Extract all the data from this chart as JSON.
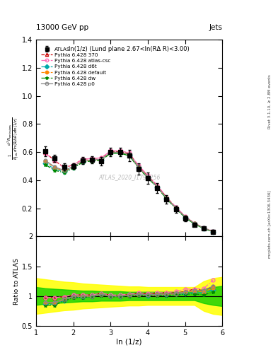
{
  "title_left": "13000 GeV pp",
  "title_right": "Jets",
  "subplot_title": "ln(1/z) (Lund plane 2.67<ln(RΔ R)<3.00)",
  "watermark": "ATLAS_2020_I1790256",
  "ylabel_main": "$\\frac{1}{N_{\\mathrm{jets}}}\\frac{d^2 N_{\\mathrm{emissions}}}{d\\ln(R/\\Delta R)\\,d\\ln(1/z)}$",
  "ylabel_ratio": "Ratio to ATLAS",
  "xlabel": "ln (1/z)",
  "right_label_top": "Rivet 3.1.10, ≥ 2.8M events",
  "right_label_bottom": "mcplots.cern.ch [arXiv:1306.3436]",
  "ylim_main": [
    0.0,
    1.4
  ],
  "ylim_ratio": [
    0.5,
    2.0
  ],
  "xlim": [
    1.0,
    6.0
  ],
  "xticks": [
    1,
    2,
    3,
    4,
    5,
    6
  ],
  "yticks_main": [
    0.2,
    0.4,
    0.6,
    0.8,
    1.0,
    1.2,
    1.4
  ],
  "yticks_ratio": [
    0.5,
    1.0,
    1.5,
    2.0
  ],
  "atlas_x": [
    1.25,
    1.5,
    1.75,
    2.0,
    2.25,
    2.5,
    2.75,
    3.0,
    3.25,
    3.5,
    3.75,
    4.0,
    4.25,
    4.5,
    4.75,
    5.0,
    5.25,
    5.5,
    5.75
  ],
  "atlas_y": [
    0.605,
    0.555,
    0.495,
    0.5,
    0.54,
    0.545,
    0.535,
    0.6,
    0.6,
    0.575,
    0.48,
    0.415,
    0.345,
    0.265,
    0.195,
    0.13,
    0.085,
    0.055,
    0.03
  ],
  "atlas_err_y": [
    0.035,
    0.025,
    0.025,
    0.02,
    0.025,
    0.025,
    0.03,
    0.03,
    0.03,
    0.04,
    0.04,
    0.04,
    0.035,
    0.03,
    0.025,
    0.02,
    0.015,
    0.01,
    0.008
  ],
  "atlas_color": "#000000",
  "atlas_marker": "s",
  "atlas_label": "ATLAS",
  "yellow_band_x": [
    1.0,
    1.25,
    1.5,
    1.75,
    2.0,
    2.25,
    2.5,
    2.75,
    3.0,
    3.25,
    3.5,
    3.75,
    4.0,
    4.25,
    4.5,
    4.75,
    5.0,
    5.25,
    5.5,
    5.75,
    6.0
  ],
  "yellow_band_lo": [
    0.7,
    0.72,
    0.74,
    0.76,
    0.77,
    0.79,
    0.8,
    0.81,
    0.82,
    0.83,
    0.84,
    0.84,
    0.85,
    0.85,
    0.85,
    0.85,
    0.85,
    0.85,
    0.75,
    0.7,
    0.68
  ],
  "yellow_band_hi": [
    1.3,
    1.28,
    1.26,
    1.24,
    1.23,
    1.21,
    1.2,
    1.19,
    1.18,
    1.17,
    1.16,
    1.16,
    1.15,
    1.15,
    1.15,
    1.15,
    1.15,
    1.15,
    1.25,
    1.3,
    1.32
  ],
  "green_band_x": [
    1.0,
    1.25,
    1.5,
    1.75,
    2.0,
    2.25,
    2.5,
    2.75,
    3.0,
    3.25,
    3.5,
    3.75,
    4.0,
    4.25,
    4.5,
    4.75,
    5.0,
    5.25,
    5.5,
    5.75,
    6.0
  ],
  "green_band_lo": [
    0.85,
    0.87,
    0.88,
    0.89,
    0.9,
    0.91,
    0.91,
    0.92,
    0.92,
    0.92,
    0.93,
    0.93,
    0.93,
    0.93,
    0.93,
    0.93,
    0.93,
    0.93,
    0.88,
    0.85,
    0.83
  ],
  "green_band_hi": [
    1.15,
    1.13,
    1.12,
    1.11,
    1.1,
    1.09,
    1.09,
    1.08,
    1.08,
    1.08,
    1.07,
    1.07,
    1.07,
    1.07,
    1.07,
    1.07,
    1.07,
    1.07,
    1.12,
    1.15,
    1.17
  ],
  "lines": [
    {
      "label": "Pythia 6.428 370",
      "color": "#cc0000",
      "linestyle": "--",
      "marker": "^",
      "marker_face": "none",
      "x": [
        1.25,
        1.5,
        1.75,
        2.0,
        2.25,
        2.5,
        2.75,
        3.0,
        3.25,
        3.5,
        3.75,
        4.0,
        4.25,
        4.5,
        4.75,
        5.0,
        5.25,
        5.5,
        5.75
      ],
      "y": [
        0.595,
        0.54,
        0.49,
        0.51,
        0.55,
        0.555,
        0.56,
        0.605,
        0.605,
        0.59,
        0.5,
        0.43,
        0.36,
        0.28,
        0.205,
        0.14,
        0.095,
        0.06,
        0.035
      ],
      "ratio": [
        0.985,
        0.973,
        0.99,
        1.02,
        1.019,
        1.018,
        1.047,
        1.008,
        1.008,
        1.026,
        1.042,
        1.036,
        1.043,
        1.057,
        1.051,
        1.077,
        1.118,
        1.091,
        1.167
      ]
    },
    {
      "label": "Pythia 6.428 atlas-csc",
      "color": "#ff69b4",
      "linestyle": "-.",
      "marker": "o",
      "marker_face": "none",
      "x": [
        1.25,
        1.5,
        1.75,
        2.0,
        2.25,
        2.5,
        2.75,
        3.0,
        3.25,
        3.5,
        3.75,
        4.0,
        4.25,
        4.5,
        4.75,
        5.0,
        5.25,
        5.5,
        5.75
      ],
      "y": [
        0.59,
        0.54,
        0.49,
        0.51,
        0.55,
        0.555,
        0.56,
        0.61,
        0.61,
        0.595,
        0.505,
        0.435,
        0.365,
        0.28,
        0.21,
        0.145,
        0.095,
        0.062,
        0.038
      ],
      "ratio": [
        0.975,
        0.973,
        0.99,
        1.02,
        1.019,
        1.018,
        1.047,
        1.017,
        1.017,
        1.035,
        1.052,
        1.048,
        1.058,
        1.057,
        1.077,
        1.115,
        1.118,
        1.127,
        1.267
      ]
    },
    {
      "label": "Pythia 6.428 d6t",
      "color": "#00aaaa",
      "linestyle": "--",
      "marker": "D",
      "marker_face": "#00aaaa",
      "x": [
        1.25,
        1.5,
        1.75,
        2.0,
        2.25,
        2.5,
        2.75,
        3.0,
        3.25,
        3.5,
        3.75,
        4.0,
        4.25,
        4.5,
        4.75,
        5.0,
        5.25,
        5.5,
        5.75
      ],
      "y": [
        0.52,
        0.48,
        0.46,
        0.49,
        0.53,
        0.54,
        0.545,
        0.595,
        0.595,
        0.58,
        0.49,
        0.42,
        0.35,
        0.27,
        0.2,
        0.135,
        0.09,
        0.058,
        0.033
      ],
      "ratio": [
        0.86,
        0.865,
        0.929,
        0.98,
        0.981,
        0.991,
        1.019,
        0.992,
        0.992,
        1.009,
        1.021,
        1.012,
        1.014,
        1.019,
        1.026,
        1.038,
        1.059,
        1.055,
        1.1
      ]
    },
    {
      "label": "Pythia 6.428 default",
      "color": "#ff8800",
      "linestyle": "--",
      "marker": "o",
      "marker_face": "#ff8800",
      "x": [
        1.25,
        1.5,
        1.75,
        2.0,
        2.25,
        2.5,
        2.75,
        3.0,
        3.25,
        3.5,
        3.75,
        4.0,
        4.25,
        4.5,
        4.75,
        5.0,
        5.25,
        5.5,
        5.75
      ],
      "y": [
        0.535,
        0.49,
        0.465,
        0.495,
        0.535,
        0.542,
        0.548,
        0.598,
        0.598,
        0.582,
        0.492,
        0.422,
        0.352,
        0.272,
        0.202,
        0.138,
        0.092,
        0.059,
        0.034
      ],
      "ratio": [
        0.884,
        0.883,
        0.939,
        0.99,
        0.991,
        0.994,
        1.024,
        0.997,
        0.997,
        1.012,
        1.025,
        1.017,
        1.02,
        1.026,
        1.036,
        1.062,
        1.082,
        1.073,
        1.133
      ]
    },
    {
      "label": "Pythia 6.428 dw",
      "color": "#008800",
      "linestyle": "-.",
      "marker": "*",
      "marker_face": "#008800",
      "x": [
        1.25,
        1.5,
        1.75,
        2.0,
        2.25,
        2.5,
        2.75,
        3.0,
        3.25,
        3.5,
        3.75,
        4.0,
        4.25,
        4.5,
        4.75,
        5.0,
        5.25,
        5.5,
        5.75
      ],
      "y": [
        0.51,
        0.47,
        0.455,
        0.485,
        0.528,
        0.538,
        0.542,
        0.592,
        0.592,
        0.575,
        0.486,
        0.416,
        0.347,
        0.268,
        0.198,
        0.134,
        0.088,
        0.056,
        0.032
      ],
      "ratio": [
        0.843,
        0.847,
        0.919,
        0.97,
        0.978,
        0.987,
        1.013,
        0.987,
        0.987,
        1.0,
        1.013,
        1.002,
        1.006,
        1.011,
        1.015,
        1.031,
        1.035,
        1.018,
        1.067
      ]
    },
    {
      "label": "Pythia 6.428 p0",
      "color": "#888888",
      "linestyle": "-",
      "marker": "o",
      "marker_face": "none",
      "x": [
        1.25,
        1.5,
        1.75,
        2.0,
        2.25,
        2.5,
        2.75,
        3.0,
        3.25,
        3.5,
        3.75,
        4.0,
        4.25,
        4.5,
        4.75,
        5.0,
        5.25,
        5.5,
        5.75
      ],
      "y": [
        0.54,
        0.495,
        0.47,
        0.498,
        0.538,
        0.545,
        0.55,
        0.6,
        0.6,
        0.584,
        0.494,
        0.424,
        0.354,
        0.274,
        0.204,
        0.139,
        0.093,
        0.06,
        0.035
      ],
      "ratio": [
        0.893,
        0.892,
        0.949,
        0.996,
        0.996,
        1.0,
        1.028,
        1.0,
        1.0,
        1.016,
        1.029,
        1.022,
        1.026,
        1.034,
        1.046,
        1.069,
        1.094,
        1.091,
        1.167
      ]
    }
  ]
}
